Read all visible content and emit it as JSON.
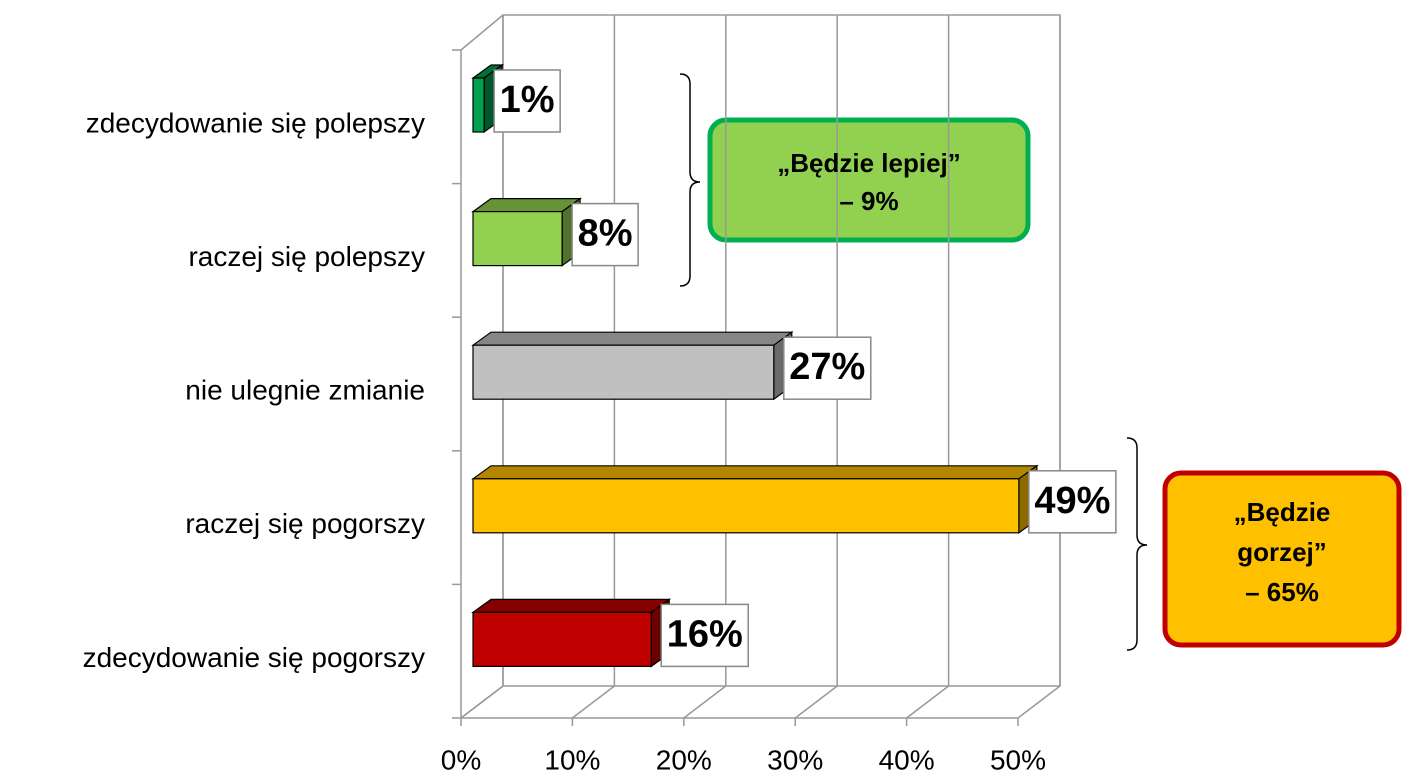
{
  "chart_data": {
    "type": "bar",
    "categories": [
      "zdecydowanie się polepszy",
      "raczej się polepszy",
      "nie ulegnie zmianie",
      "raczej się pogorszy",
      "zdecydowanie się pogorszy"
    ],
    "values": [
      1,
      8,
      27,
      49,
      16
    ],
    "value_labels": [
      "1%",
      "8%",
      "27%",
      "49%",
      "16%"
    ],
    "colors": [
      "#00a050",
      "#92d050",
      "#c0c0c0",
      "#ffc000",
      "#c00000"
    ],
    "xlim": [
      0,
      50
    ],
    "xticks": [
      {
        "value": 0,
        "label": "0%"
      },
      {
        "value": 10,
        "label": "10%"
      },
      {
        "value": 20,
        "label": "20%"
      },
      {
        "value": 30,
        "label": "30%"
      },
      {
        "value": 40,
        "label": "40%"
      },
      {
        "value": 50,
        "label": "50%"
      }
    ],
    "grid": true,
    "annotations": [
      {
        "lines": [
          "„Będzie lepiej”",
          "– 9%"
        ]
      },
      {
        "lines": [
          "„Będzie",
          "gorzej”",
          "– 65%"
        ]
      }
    ]
  }
}
